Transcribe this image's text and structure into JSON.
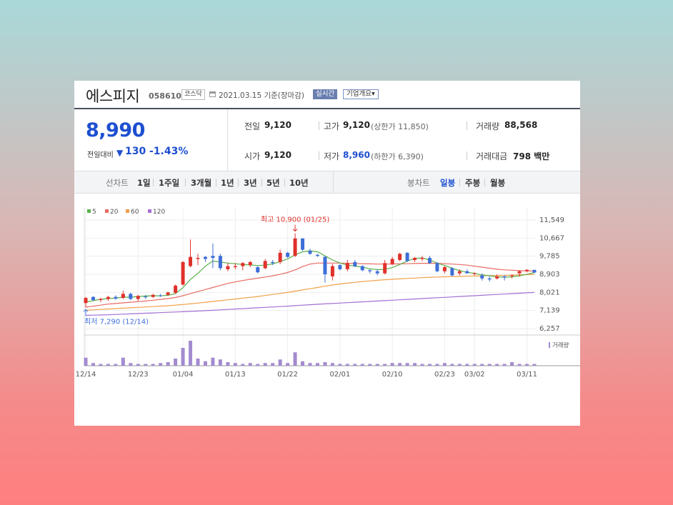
{
  "header": {
    "name": "에스피지",
    "code": "058610",
    "market": "코스닥",
    "date": "2021.03.15 기준(장마감)",
    "realtime": "실시간",
    "company": "기업개요▾"
  },
  "quote": {
    "price": "8,990",
    "change_label": "전일대비",
    "change_value": "130",
    "change_rate": "-1.43%",
    "prev_close_label": "전일",
    "prev_close": "9,120",
    "open_label": "시가",
    "open": "9,120",
    "high_label": "고가",
    "high": "9,120",
    "upper_limit": "(상한가 11,850)",
    "low_label": "저가",
    "low": "8,960",
    "lower_limit": "(하한가 6,390)",
    "volume_label": "거래량",
    "volume": "88,568",
    "amount_label": "거래대금",
    "amount": "798 백만"
  },
  "tabs": {
    "line_chart": "선차트",
    "periods": [
      "1일",
      "1주일",
      "3개월",
      "1년",
      "3년",
      "5년",
      "10년"
    ],
    "candle_chart": "봉차트",
    "candle_periods": [
      "일봉",
      "주봉",
      "월봉"
    ],
    "active_candle": "일봉"
  },
  "colors": {
    "up": "#e0312b",
    "down": "#3e6fd8",
    "ma5": "#5ab04b",
    "ma20": "#e86b63",
    "ma60": "#f0a04a",
    "ma120": "#a46fd3",
    "volume": "#a38bd0"
  },
  "chart_data": {
    "type": "candlestick",
    "legend": [
      "5",
      "20",
      "60",
      "120"
    ],
    "y_ticks": [
      "11,549",
      "10,667",
      "9,785",
      "8,903",
      "8,021",
      "7,139",
      "6,257"
    ],
    "ylim": [
      6257,
      11549
    ],
    "x_tick_labels": [
      "12/14",
      "12/23",
      "01/04",
      "01/13",
      "01/22",
      "02/01",
      "02/10",
      "02/23",
      "03/02",
      "03/11"
    ],
    "x_tick_index": [
      0,
      7,
      13,
      20,
      27,
      34,
      41,
      48,
      52,
      59
    ],
    "high_annotation": "최고 10,900 (01/25)",
    "low_annotation": "최저 7,290 (12/14)",
    "volume_label": "거래량",
    "candles": [
      {
        "o": 7500,
        "h": 7800,
        "l": 7290,
        "c": 7750
      },
      {
        "o": 7800,
        "h": 7830,
        "l": 7600,
        "c": 7650
      },
      {
        "o": 7650,
        "h": 7750,
        "l": 7550,
        "c": 7700
      },
      {
        "o": 7700,
        "h": 7850,
        "l": 7600,
        "c": 7800
      },
      {
        "o": 7800,
        "h": 7880,
        "l": 7650,
        "c": 7720
      },
      {
        "o": 7750,
        "h": 8100,
        "l": 7700,
        "c": 7950
      },
      {
        "o": 7950,
        "h": 8000,
        "l": 7650,
        "c": 7700
      },
      {
        "o": 7700,
        "h": 7900,
        "l": 7600,
        "c": 7850
      },
      {
        "o": 7820,
        "h": 7900,
        "l": 7700,
        "c": 7780
      },
      {
        "o": 7800,
        "h": 7950,
        "l": 7750,
        "c": 7900
      },
      {
        "o": 7880,
        "h": 7950,
        "l": 7800,
        "c": 7850
      },
      {
        "o": 7900,
        "h": 8050,
        "l": 7850,
        "c": 8020
      },
      {
        "o": 8000,
        "h": 8400,
        "l": 7950,
        "c": 8350
      },
      {
        "o": 8400,
        "h": 9550,
        "l": 8350,
        "c": 9500
      },
      {
        "o": 9300,
        "h": 10600,
        "l": 9250,
        "c": 9750
      },
      {
        "o": 9650,
        "h": 9900,
        "l": 9350,
        "c": 9700
      },
      {
        "o": 9750,
        "h": 9800,
        "l": 9500,
        "c": 9650
      },
      {
        "o": 9800,
        "h": 10400,
        "l": 9200,
        "c": 9700
      },
      {
        "o": 9800,
        "h": 9900,
        "l": 9100,
        "c": 9200
      },
      {
        "o": 9150,
        "h": 9450,
        "l": 9050,
        "c": 9300
      },
      {
        "o": 9250,
        "h": 9450,
        "l": 9150,
        "c": 9300
      },
      {
        "o": 9300,
        "h": 9500,
        "l": 9100,
        "c": 9450
      },
      {
        "o": 9350,
        "h": 9550,
        "l": 9250,
        "c": 9500
      },
      {
        "o": 9250,
        "h": 9300,
        "l": 8950,
        "c": 9000
      },
      {
        "o": 9200,
        "h": 9650,
        "l": 9150,
        "c": 9550
      },
      {
        "o": 9500,
        "h": 9600,
        "l": 9350,
        "c": 9450
      },
      {
        "o": 9500,
        "h": 10100,
        "l": 9400,
        "c": 9950
      },
      {
        "o": 9950,
        "h": 10000,
        "l": 9700,
        "c": 9750
      },
      {
        "o": 9800,
        "h": 10900,
        "l": 9750,
        "c": 10650
      },
      {
        "o": 10650,
        "h": 10650,
        "l": 10050,
        "c": 10100
      },
      {
        "o": 10050,
        "h": 10150,
        "l": 9850,
        "c": 9900
      },
      {
        "o": 9850,
        "h": 9900,
        "l": 9750,
        "c": 9800
      },
      {
        "o": 9750,
        "h": 9800,
        "l": 8500,
        "c": 8900
      },
      {
        "o": 8800,
        "h": 9400,
        "l": 8600,
        "c": 9300
      },
      {
        "o": 9350,
        "h": 9400,
        "l": 9100,
        "c": 9150
      },
      {
        "o": 9150,
        "h": 9600,
        "l": 9050,
        "c": 9450
      },
      {
        "o": 9500,
        "h": 9600,
        "l": 9250,
        "c": 9300
      },
      {
        "o": 9300,
        "h": 9350,
        "l": 9050,
        "c": 9100
      },
      {
        "o": 9100,
        "h": 9150,
        "l": 8950,
        "c": 9050
      },
      {
        "o": 9050,
        "h": 9150,
        "l": 8850,
        "c": 8950
      },
      {
        "o": 8950,
        "h": 9600,
        "l": 8900,
        "c": 9450
      },
      {
        "o": 9400,
        "h": 9750,
        "l": 9350,
        "c": 9650
      },
      {
        "o": 9600,
        "h": 9950,
        "l": 9550,
        "c": 9900
      },
      {
        "o": 9950,
        "h": 9980,
        "l": 9500,
        "c": 9550
      },
      {
        "o": 9600,
        "h": 9750,
        "l": 9500,
        "c": 9700
      },
      {
        "o": 9650,
        "h": 9800,
        "l": 9550,
        "c": 9700
      },
      {
        "o": 9700,
        "h": 9800,
        "l": 9400,
        "c": 9450
      },
      {
        "o": 9450,
        "h": 9500,
        "l": 9000,
        "c": 9050
      },
      {
        "o": 9050,
        "h": 9300,
        "l": 8950,
        "c": 9250
      },
      {
        "o": 9200,
        "h": 9250,
        "l": 8800,
        "c": 8850
      },
      {
        "o": 8950,
        "h": 9150,
        "l": 8850,
        "c": 9050
      },
      {
        "o": 9050,
        "h": 9150,
        "l": 8950,
        "c": 8950
      },
      {
        "o": 8950,
        "h": 9000,
        "l": 8850,
        "c": 8950
      },
      {
        "o": 8850,
        "h": 8950,
        "l": 8600,
        "c": 8700
      },
      {
        "o": 8700,
        "h": 8800,
        "l": 8550,
        "c": 8650
      },
      {
        "o": 8700,
        "h": 8900,
        "l": 8650,
        "c": 8800
      },
      {
        "o": 8800,
        "h": 8850,
        "l": 8600,
        "c": 8750
      },
      {
        "o": 8850,
        "h": 8900,
        "l": 8700,
        "c": 8850
      },
      {
        "o": 8950,
        "h": 9100,
        "l": 8800,
        "c": 9050
      },
      {
        "o": 9050,
        "h": 9150,
        "l": 9000,
        "c": 9120
      },
      {
        "o": 9120,
        "h": 9120,
        "l": 8960,
        "c": 8990
      }
    ],
    "ma5": [
      7550,
      7620,
      7680,
      7720,
      7740,
      7790,
      7790,
      7820,
      7840,
      7860,
      7850,
      7880,
      7960,
      8250,
      8650,
      8950,
      9300,
      9550,
      9500,
      9450,
      9420,
      9380,
      9360,
      9330,
      9350,
      9410,
      9520,
      9650,
      9850,
      10000,
      10050,
      10000,
      9800,
      9600,
      9450,
      9350,
      9300,
      9250,
      9170,
      9130,
      9140,
      9230,
      9380,
      9550,
      9680,
      9700,
      9600,
      9450,
      9330,
      9200,
      9080,
      9000,
      8950,
      8870,
      8830,
      8780,
      8760,
      8780,
      8830,
      8900,
      8990
    ],
    "ma20": [
      7300,
      7350,
      7400,
      7450,
      7480,
      7510,
      7540,
      7570,
      7600,
      7640,
      7680,
      7720,
      7770,
      7860,
      7960,
      8060,
      8160,
      8260,
      8360,
      8460,
      8530,
      8600,
      8660,
      8710,
      8770,
      8830,
      8900,
      8990,
      9120,
      9280,
      9400,
      9450,
      9450,
      9450,
      9450,
      9440,
      9430,
      9420,
      9410,
      9400,
      9400,
      9400,
      9410,
      9420,
      9430,
      9440,
      9440,
      9440,
      9420,
      9400,
      9380,
      9350,
      9300,
      9250,
      9200,
      9150,
      9120,
      9100,
      9080,
      9070,
      9060
    ],
    "ma60": [
      7150,
      7170,
      7190,
      7210,
      7230,
      7250,
      7270,
      7290,
      7310,
      7330,
      7350,
      7370,
      7400,
      7430,
      7460,
      7500,
      7540,
      7580,
      7620,
      7660,
      7700,
      7740,
      7780,
      7820,
      7870,
      7920,
      7970,
      8020,
      8080,
      8140,
      8200,
      8260,
      8320,
      8380,
      8430,
      8470,
      8510,
      8550,
      8580,
      8610,
      8640,
      8660,
      8680,
      8700,
      8720,
      8740,
      8760,
      8770,
      8780,
      8790,
      8800,
      8810,
      8820,
      8830,
      8840,
      8845,
      8850,
      8860,
      8870,
      8890,
      8900
    ],
    "ma120": [
      6900,
      6910,
      6920,
      6930,
      6945,
      6960,
      6975,
      6990,
      7005,
      7020,
      7035,
      7050,
      7065,
      7080,
      7095,
      7110,
      7130,
      7150,
      7170,
      7190,
      7210,
      7230,
      7250,
      7270,
      7290,
      7310,
      7330,
      7350,
      7375,
      7400,
      7420,
      7440,
      7460,
      7480,
      7500,
      7520,
      7540,
      7560,
      7580,
      7600,
      7620,
      7640,
      7660,
      7680,
      7700,
      7720,
      7740,
      7760,
      7780,
      7800,
      7820,
      7840,
      7860,
      7880,
      7900,
      7920,
      7940,
      7960,
      7980,
      8000,
      8020
    ],
    "volume": [
      9,
      3,
      2,
      2,
      2,
      9,
      3,
      2,
      2,
      2,
      3,
      4,
      8,
      20,
      28,
      8,
      5,
      9,
      7,
      4,
      3,
      2,
      3,
      2,
      3,
      3,
      7,
      3,
      15,
      5,
      3,
      3,
      4,
      3,
      2,
      2,
      2,
      2,
      2,
      2,
      2,
      3,
      3,
      3,
      3,
      2,
      2,
      2,
      3,
      2,
      2,
      2,
      2,
      2,
      2,
      2,
      2,
      4,
      2,
      2,
      2
    ]
  }
}
